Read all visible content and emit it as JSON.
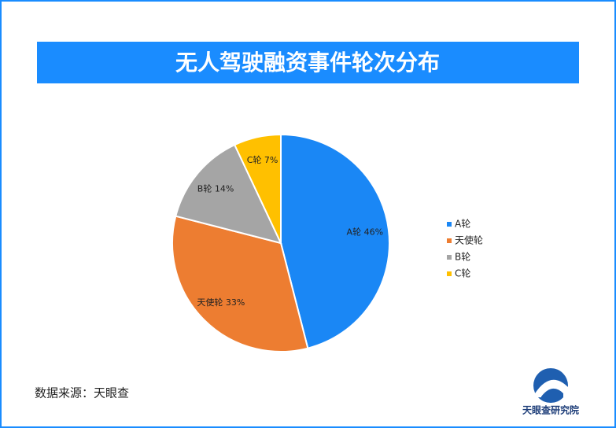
{
  "chart_data": {
    "type": "pie",
    "title": "无人驾驶融资事件轮次分布",
    "categories": [
      "A轮",
      "天使轮",
      "B轮",
      "C轮"
    ],
    "values": [
      46,
      33,
      14,
      7
    ],
    "value_labels": [
      "46%",
      "33%",
      "14%",
      "7%"
    ],
    "colors": [
      "#1a87f5",
      "#ed7d31",
      "#a5a5a5",
      "#ffc000"
    ],
    "legend": "right",
    "source": "数据来源：天眼查",
    "brand": "天眼查研究院"
  }
}
